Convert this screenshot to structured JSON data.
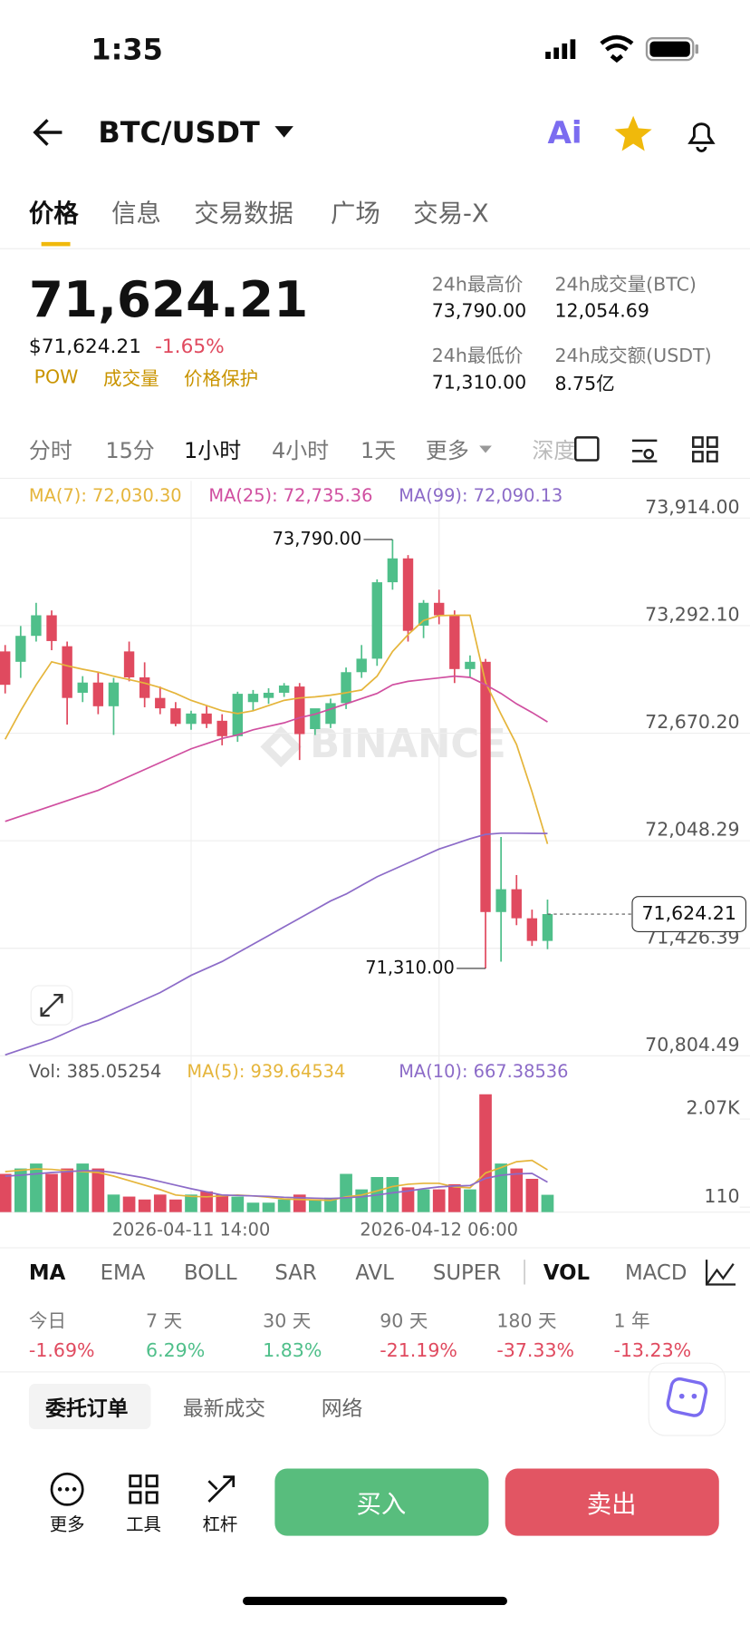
{
  "status_bar": {
    "time": "1:35"
  },
  "header": {
    "pair": "BTC/USDT"
  },
  "tabs": [
    "价格",
    "信息",
    "交易数据",
    "广场",
    "交易-X"
  ],
  "ticker": {
    "price": "71,624.21",
    "price_usd": "$71,624.21",
    "change": "-1.65%",
    "tags": [
      "POW",
      "成交量",
      "价格保护"
    ],
    "stats": [
      {
        "label": "24h最高价",
        "value": "73,790.00"
      },
      {
        "label": "24h成交量(BTC)",
        "value": "12,054.69"
      },
      {
        "label": "24h最低价",
        "value": "71,310.00"
      },
      {
        "label": "24h成交额(USDT)",
        "value": "8.75亿"
      }
    ]
  },
  "intervals": [
    "分时",
    "15分",
    "1小时",
    "4小时",
    "1天",
    "更多",
    "深度"
  ],
  "chart_data": [
    {
      "type": "candlestick",
      "watermark": "BINANCE",
      "grid": true,
      "up_color": "#4fbf8a",
      "down_color": "#e04a5f",
      "ylim": [
        70798,
        74129
      ],
      "yticks": [
        {
          "value": 73914,
          "label": "73,914.00"
        },
        {
          "value": 73292.1,
          "label": "73,292.10"
        },
        {
          "value": 72670.2,
          "label": "72,670.20"
        },
        {
          "value": 72048.29,
          "label": "72,048.29"
        },
        {
          "value": 71426.39,
          "label": "71,426.39"
        },
        {
          "value": 70804.49,
          "label": "70,804.49"
        }
      ],
      "open": [
        73143,
        73083,
        73233,
        73352,
        73173,
        72904,
        72963,
        72826,
        73143,
        72993,
        72874,
        72814,
        72724,
        72784,
        72742,
        72653,
        72850,
        72874,
        72904,
        72940,
        72694,
        72724,
        72844,
        73023,
        73101,
        73543,
        73681,
        73292,
        73424,
        73352,
        73041,
        73083,
        71636,
        71768,
        71600,
        71469
      ],
      "high": [
        73180,
        73290,
        73424,
        73380,
        73200,
        73000,
        73020,
        72990,
        73200,
        73080,
        72940,
        72850,
        72800,
        72830,
        72780,
        72910,
        72920,
        72930,
        72960,
        72960,
        72800,
        72870,
        73050,
        73180,
        73560,
        73790,
        73700,
        73440,
        73500,
        73380,
        73120,
        73100,
        72070,
        71850,
        71650,
        71708
      ],
      "low": [
        72900,
        72990,
        73200,
        73150,
        72720,
        72850,
        72780,
        72660,
        72970,
        72820,
        72780,
        72710,
        72690,
        72700,
        72600,
        72620,
        72800,
        72840,
        72880,
        72515,
        72660,
        72700,
        72810,
        72990,
        73060,
        73500,
        73200,
        73220,
        73300,
        72960,
        72990,
        71310,
        71349,
        71560,
        71440,
        71421
      ],
      "close": [
        72950,
        73233,
        73352,
        73203,
        72874,
        72963,
        72826,
        72963,
        72993,
        72874,
        72814,
        72724,
        72784,
        72724,
        72653,
        72898,
        72898,
        72904,
        72946,
        72665,
        72814,
        72844,
        73023,
        73101,
        73543,
        73681,
        73262,
        73424,
        73352,
        73041,
        73083,
        71636,
        71768,
        71600,
        71469,
        71624.21
      ],
      "series": [
        {
          "name": "MA(7): 72,030.30",
          "color": "#e5b53b",
          "values": [
            72635,
            72800,
            72950,
            73083,
            73060,
            73040,
            73023,
            73000,
            72980,
            72960,
            72934,
            72900,
            72860,
            72830,
            72800,
            72784,
            72800,
            72830,
            72860,
            72874,
            72880,
            72890,
            72904,
            72920,
            73000,
            73143,
            73240,
            73322,
            73350,
            73352,
            73352,
            72963,
            72780,
            72605,
            72330,
            72030.3
          ]
        },
        {
          "name": "MA(25): 72,735.36",
          "color": "#d04fa0",
          "values": [
            72160,
            72190,
            72220,
            72250,
            72280,
            72310,
            72340,
            72380,
            72420,
            72460,
            72500,
            72540,
            72580,
            72610,
            72640,
            72660,
            72690,
            72710,
            72730,
            72760,
            72780,
            72810,
            72840,
            72870,
            72900,
            72950,
            72970,
            72980,
            72990,
            73000,
            72993,
            72950,
            72900,
            72840,
            72790,
            72735.36
          ]
        },
        {
          "name": "MA(99): 72,090.13",
          "color": "#8c6bc8",
          "values": [
            70810,
            70840,
            70870,
            70900,
            70940,
            70980,
            71010,
            71050,
            71090,
            71130,
            71170,
            71220,
            71270,
            71310,
            71350,
            71400,
            71450,
            71500,
            71550,
            71600,
            71650,
            71700,
            71740,
            71790,
            71840,
            71880,
            71920,
            71960,
            72000,
            72030,
            72060,
            72085,
            72092,
            72092,
            72091,
            72090.13
          ]
        }
      ],
      "annotations": [
        {
          "text": "73,790.00",
          "value": 73790,
          "index": 25
        },
        {
          "text": "71,310.00",
          "value": 71310,
          "index": 31
        }
      ],
      "price_tag": {
        "text": "71,624.21",
        "value": 71624.21,
        "index": 35
      }
    },
    {
      "type": "bar",
      "label": "Vol: 385.05254",
      "categories": [
        null,
        null,
        null,
        null,
        null,
        null,
        null,
        null,
        null,
        null,
        null,
        null,
        "2026-04-11 14:00",
        null,
        null,
        null,
        null,
        null,
        null,
        null,
        null,
        null,
        null,
        null,
        null,
        null,
        null,
        null,
        "2026-04-12 06:00",
        null,
        null,
        null,
        null,
        null,
        null,
        null
      ],
      "values": [
        850,
        970,
        1080,
        850,
        970,
        1080,
        970,
        390,
        345,
        280,
        390,
        280,
        390,
        460,
        390,
        345,
        210,
        210,
        280,
        390,
        280,
        320,
        850,
        505,
        780,
        780,
        550,
        505,
        505,
        620,
        505,
        2620,
        1080,
        970,
        740,
        385.05254
      ],
      "ylim": [
        0,
        3266
      ],
      "yticks": [
        {
          "value": 2070,
          "label": "2.07K"
        },
        110
      ],
      "series": [
        {
          "name": "MA(5): 939.64534",
          "color": "#e5b53b",
          "values": [
            900,
            930,
            960,
            950,
            920,
            900,
            880,
            800,
            700,
            600,
            500,
            380,
            350,
            340,
            360,
            380,
            360,
            330,
            290,
            280,
            270,
            260,
            340,
            380,
            470,
            570,
            620,
            640,
            640,
            560,
            540,
            870,
            990,
            1120,
            1150,
            939.64534
          ]
        },
        {
          "name": "MA(10): 667.38536",
          "color": "#8c6bc8",
          "values": [
            800,
            820,
            850,
            880,
            900,
            920,
            920,
            880,
            820,
            760,
            680,
            600,
            520,
            450,
            380,
            370,
            360,
            350,
            330,
            320,
            310,
            300,
            320,
            340,
            380,
            430,
            470,
            520,
            560,
            580,
            590,
            750,
            820,
            850,
            860,
            667.38536
          ]
        }
      ]
    }
  ],
  "indicators": [
    "MA",
    "EMA",
    "BOLL",
    "SAR",
    "AVL",
    "SUPER",
    "VOL",
    "MACD"
  ],
  "performance": [
    {
      "label": "今日",
      "value": "-1.69%"
    },
    {
      "label": "7 天",
      "value": "6.29%"
    },
    {
      "label": "30 天",
      "value": "1.83%"
    },
    {
      "label": "90 天",
      "value": "-21.19%"
    },
    {
      "label": "180 天",
      "value": "-37.33%"
    },
    {
      "label": "1 年",
      "value": "-13.23%"
    }
  ],
  "order_tabs": [
    "委托订单",
    "最新成交",
    "网络"
  ],
  "bottom": {
    "tools": [
      "更多",
      "工具",
      "杠杆"
    ],
    "buy": "买入",
    "sell": "卖出"
  }
}
